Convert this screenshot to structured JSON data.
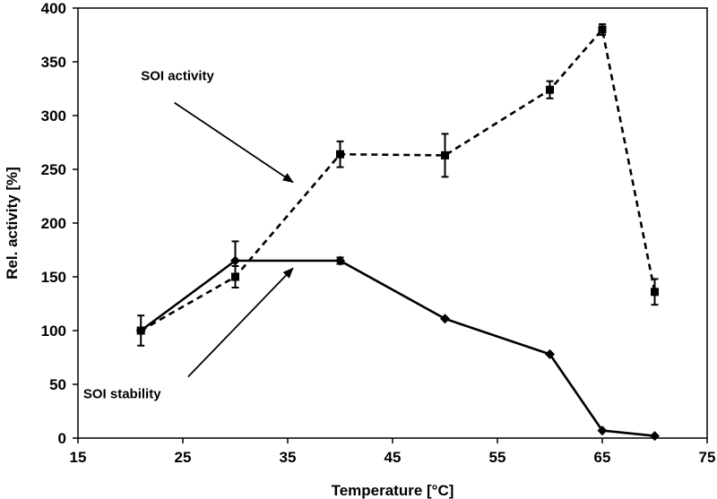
{
  "chart_data": {
    "type": "line",
    "title": "",
    "xlabel": "Temperature [°C]",
    "ylabel": "Rel. activity [%]",
    "xlim": [
      15,
      75
    ],
    "ylim": [
      0,
      400
    ],
    "xticks": [
      15,
      25,
      35,
      45,
      55,
      65,
      75
    ],
    "yticks": [
      0,
      50,
      100,
      150,
      200,
      250,
      300,
      350,
      400
    ],
    "grid": false,
    "series": [
      {
        "name": "SOI activity",
        "line_style": "dashed",
        "marker": "square",
        "color": "#000000",
        "x": [
          21,
          30,
          40,
          50,
          60,
          65,
          70
        ],
        "y": [
          100,
          150,
          264,
          263,
          324,
          380,
          136
        ],
        "err": [
          14,
          10,
          12,
          20,
          8,
          5,
          12
        ]
      },
      {
        "name": "SOI stability",
        "line_style": "solid",
        "marker": "diamond",
        "color": "#000000",
        "x": [
          21,
          30,
          40,
          50,
          60,
          65,
          70
        ],
        "y": [
          100,
          165,
          165,
          111,
          78,
          7,
          2
        ],
        "err": [
          0,
          18,
          3,
          0,
          0,
          0,
          0
        ]
      }
    ],
    "annotations": [
      {
        "text": "SOI activity",
        "series": "SOI activity",
        "text_x": 21,
        "text_y": 333,
        "arrow_from": [
          24.2,
          312
        ],
        "arrow_to": [
          35.5,
          238
        ]
      },
      {
        "text": "SOI stability",
        "series": "SOI stability",
        "text_x": 15.5,
        "text_y": 37,
        "arrow_from": [
          25.5,
          57
        ],
        "arrow_to": [
          35.5,
          158
        ]
      }
    ]
  }
}
